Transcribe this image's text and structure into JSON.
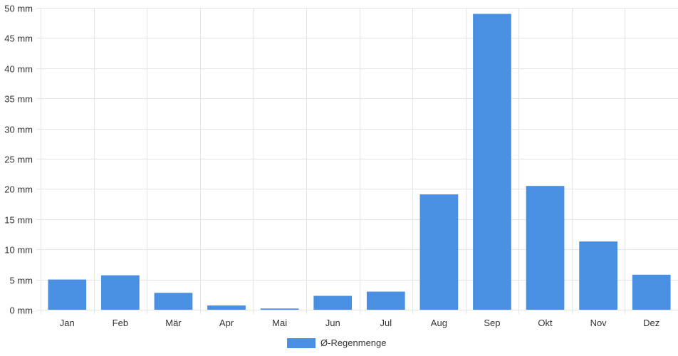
{
  "chart_data": {
    "type": "bar",
    "categories": [
      "Jan",
      "Feb",
      "Mär",
      "Apr",
      "Mai",
      "Jun",
      "Jul",
      "Aug",
      "Sep",
      "Okt",
      "Nov",
      "Dez"
    ],
    "series": [
      {
        "name": "Ø-Regenmenge",
        "values": [
          5.0,
          5.7,
          2.8,
          0.7,
          0.2,
          2.3,
          3.0,
          19.1,
          49.0,
          20.5,
          11.3,
          5.8
        ],
        "color": "#4a90e2"
      }
    ],
    "y_unit_suffix": " mm",
    "y_ticks": [
      0,
      5,
      10,
      15,
      20,
      25,
      30,
      35,
      40,
      45,
      50
    ],
    "ylim": [
      0,
      50
    ],
    "grid": true,
    "legend_position": "bottom-center",
    "colors": {
      "bar": "#4a90e2",
      "grid": "#e5e5e5",
      "text": "#333333"
    }
  }
}
